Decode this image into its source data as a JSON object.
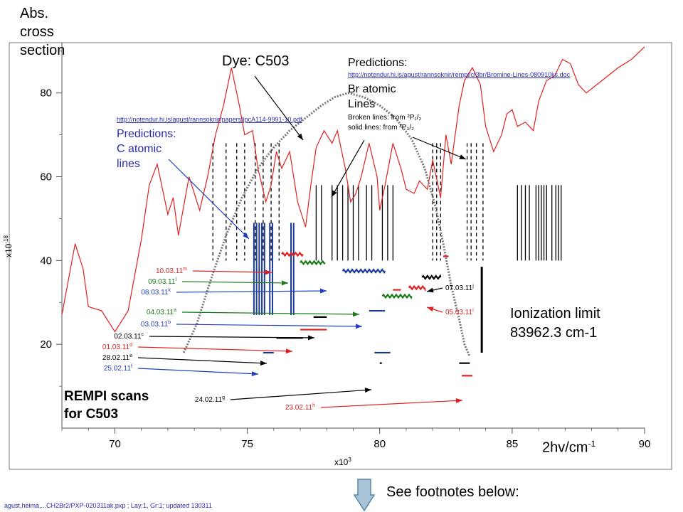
{
  "texts": {
    "ylabel_top": [
      "Abs.",
      "cross",
      "section"
    ],
    "dye": "Dye: C503",
    "pred_br_title": "Predictions:",
    "pred_br_link": "http://notendur.hi.is/agust/rannsoknir/rempi/cf3br/Bromine-Lines-080910ks.doc",
    "br_lines": [
      "Br atomic",
      "Lines"
    ],
    "br_note1": "Broken lines: from ²P₁/₂",
    "br_note2": "solid lines: from ²P₃/₂",
    "pred_c_link": "http://notendur.hi.is/agust/rannsoknir/papers/jpcA114-9991-10.pdf",
    "pred_c": [
      "Predictions:",
      "C atomic",
      "lines"
    ],
    "ylabel_exp": "x10",
    "ylabel_exp_sup": "-18",
    "xlabel_exp": "x10",
    "xlabel_exp_sup": "3",
    "ionization": [
      "Ionization limit",
      "83962.3 cm-1"
    ],
    "rempi": [
      "REMPI scans",
      "for C503"
    ],
    "xaxis": "2hv/cm",
    "xaxis_sup": "-1",
    "footnote_link": "See footnotes below:",
    "bottom_note": "agust,heima,...CH2Br2/PXP-020311ak.pxp ; Lay:1, Gr:1;    updated 130311"
  },
  "colors": {
    "red": "#e02020",
    "green": "#1a7a1a",
    "blue": "#2040c0",
    "navy": "#1a3a9a",
    "black": "#000000",
    "gray": "#777777",
    "arrow_down": "#9ab8cc"
  },
  "chart_data": {
    "type": "line",
    "xlim": [
      68,
      90
    ],
    "ylim": [
      0,
      92
    ],
    "xticks": [
      "70",
      "75",
      "80",
      "85",
      "90"
    ],
    "yticks": [
      "20",
      "40",
      "60",
      "80"
    ],
    "series": [
      {
        "values": [
          [
            68.0,
            27
          ],
          [
            68.5,
            44
          ],
          [
            68.8,
            38
          ],
          [
            69.0,
            29
          ],
          [
            69.5,
            28
          ],
          [
            70.0,
            23
          ],
          [
            70.5,
            28
          ],
          [
            71.0,
            45
          ],
          [
            71.3,
            58
          ],
          [
            71.6,
            63
          ],
          [
            72.0,
            51
          ],
          [
            72.2,
            55
          ],
          [
            72.4,
            46
          ],
          [
            72.8,
            60
          ],
          [
            73.2,
            52
          ],
          [
            73.5,
            60
          ],
          [
            73.8,
            70
          ],
          [
            74.1,
            77
          ],
          [
            74.4,
            86
          ],
          [
            74.7,
            77
          ],
          [
            74.9,
            70
          ],
          [
            75.2,
            71
          ],
          [
            75.4,
            62
          ],
          [
            75.7,
            54
          ],
          [
            75.9,
            58
          ],
          [
            76.1,
            66
          ],
          [
            76.3,
            62
          ],
          [
            76.6,
            66
          ],
          [
            76.9,
            54
          ],
          [
            77.2,
            48
          ],
          [
            77.4,
            58
          ],
          [
            77.6,
            67
          ],
          [
            77.9,
            71
          ],
          [
            78.2,
            68
          ],
          [
            78.4,
            71
          ],
          [
            78.7,
            62
          ],
          [
            78.9,
            54
          ],
          [
            79.1,
            56
          ],
          [
            79.3,
            60
          ],
          [
            79.6,
            68
          ],
          [
            79.9,
            60
          ],
          [
            80.0,
            52
          ],
          [
            80.2,
            58
          ],
          [
            80.5,
            68
          ],
          [
            80.8,
            62
          ],
          [
            81.0,
            57
          ],
          [
            81.3,
            56
          ],
          [
            81.5,
            59
          ],
          [
            81.8,
            57
          ],
          [
            82.0,
            64
          ],
          [
            82.3,
            55
          ],
          [
            82.5,
            70
          ],
          [
            82.7,
            63
          ],
          [
            83.0,
            77
          ],
          [
            83.2,
            83
          ],
          [
            83.5,
            86
          ],
          [
            83.8,
            82
          ],
          [
            84.0,
            72
          ],
          [
            84.3,
            66
          ],
          [
            84.6,
            70
          ],
          [
            84.8,
            75
          ],
          [
            85.0,
            76
          ],
          [
            85.2,
            72
          ],
          [
            85.5,
            73
          ],
          [
            85.8,
            71
          ],
          [
            86.0,
            78
          ],
          [
            86.3,
            83
          ],
          [
            86.6,
            84
          ],
          [
            86.9,
            88
          ],
          [
            87.2,
            87
          ],
          [
            87.5,
            82
          ],
          [
            87.8,
            80
          ],
          [
            88.2,
            82
          ],
          [
            88.6,
            84
          ],
          [
            89.0,
            86
          ],
          [
            89.5,
            88
          ],
          [
            90.0,
            91
          ]
        ]
      },
      {
        "values": [
          [
            72.6,
            18
          ],
          [
            73.1,
            25
          ],
          [
            73.6,
            35
          ],
          [
            74.2,
            46
          ],
          [
            74.8,
            55
          ],
          [
            75.4,
            62
          ],
          [
            76.0,
            67
          ],
          [
            76.6,
            71
          ],
          [
            77.2,
            74
          ],
          [
            77.8,
            77
          ],
          [
            78.3,
            79
          ],
          [
            78.8,
            80
          ],
          [
            79.4,
            79
          ],
          [
            80.0,
            77
          ],
          [
            80.6,
            74
          ],
          [
            81.2,
            69
          ],
          [
            81.7,
            62
          ],
          [
            82.1,
            53
          ],
          [
            82.4,
            44
          ],
          [
            82.7,
            34
          ],
          [
            83.0,
            26
          ],
          [
            83.2,
            20
          ],
          [
            83.4,
            17
          ]
        ]
      }
    ],
    "c_lines": [
      75.25,
      75.35,
      75.45,
      75.55,
      75.65,
      75.85,
      75.95,
      76.65,
      76.75
    ],
    "br_broken": [
      73.7,
      74.2,
      74.6,
      74.9,
      75.3,
      75.6,
      75.9,
      76.2,
      82.0,
      82.15,
      82.3,
      83.3,
      83.45,
      83.65,
      83.9
    ],
    "br_solid": [
      77.6,
      77.8,
      78.2,
      78.4,
      78.6,
      78.8,
      79.0,
      79.2,
      79.5,
      79.7,
      80.1,
      80.3,
      80.5,
      85.2,
      85.35,
      85.5,
      85.65,
      85.9,
      86.0,
      86.1,
      86.2,
      86.3,
      86.5,
      86.65,
      86.75,
      86.85
    ],
    "ionization_limit": 83.96,
    "scans": [
      {
        "label": "10.03.11",
        "sup": "m",
        "color": "red",
        "x": [
          76.3,
          77.1
        ],
        "y": 41.5,
        "style": "wavy"
      },
      {
        "label": "09.03.11",
        "sup": "l",
        "color": "green",
        "x": [
          77.0,
          77.9
        ],
        "y": 39.5,
        "style": "wavy"
      },
      {
        "label": "08.03.11",
        "sup": "k",
        "color": "navy",
        "x": [
          78.6,
          80.2
        ],
        "y": 37.5,
        "style": "wavy"
      },
      {
        "label": "07.03.11",
        "sup": "j",
        "color": "black",
        "x": [
          81.6,
          82.3
        ],
        "y": 36.0,
        "style": "wavy"
      },
      {
        "label": "05.03.11",
        "sup": "i",
        "color": "red",
        "x": [
          81.1,
          81.7
        ],
        "y": 33.5,
        "style": "wavy"
      },
      {
        "label": "04.03.11",
        "sup": "a",
        "color": "green",
        "x": [
          80.1,
          81.2
        ],
        "y": 31.5,
        "style": "wavy"
      },
      {
        "label": "03.03.11",
        "sup": "b",
        "color": "navy",
        "x": [
          79.6,
          80.2
        ],
        "y": 28.0,
        "style": "solid"
      },
      {
        "label": "02.03.11",
        "sup": "c",
        "color": "black",
        "x": [
          77.5,
          78.0
        ],
        "y": 26.5,
        "style": "solid"
      },
      {
        "label": "01.03.11",
        "sup": "d",
        "color": "red",
        "x": [
          77.0,
          78.0
        ],
        "y": 23.5,
        "style": "solid"
      },
      {
        "label": "28.02.11",
        "sup": "e",
        "color": "black",
        "x": [
          76.1,
          77.1
        ],
        "y": 21.5,
        "style": "solid"
      },
      {
        "label": "25.02.11",
        "sup": "f",
        "color": "navy",
        "x": [
          75.6,
          76.0
        ],
        "y": 18.0,
        "style": "solid"
      },
      {
        "label": "24.02.11",
        "sup": "g",
        "color": "black",
        "x": [
          80.0,
          80.05
        ],
        "y": 15.5,
        "style": "solid"
      },
      {
        "label": "23.02.11",
        "sup": "h",
        "color": "red",
        "x": [
          83.1,
          83.5
        ],
        "y": 12.5,
        "style": "solid"
      }
    ],
    "extra_marks": [
      {
        "color": "navy",
        "x": [
          79.8,
          80.4
        ],
        "y": 18.0
      },
      {
        "color": "black",
        "x": [
          83.0,
          83.4
        ],
        "y": 15.5
      },
      {
        "color": "red",
        "x": [
          80.5,
          80.8
        ],
        "y": 33.0
      },
      {
        "color": "red",
        "x": [
          82.4,
          82.6
        ],
        "y": 41.0
      }
    ]
  }
}
